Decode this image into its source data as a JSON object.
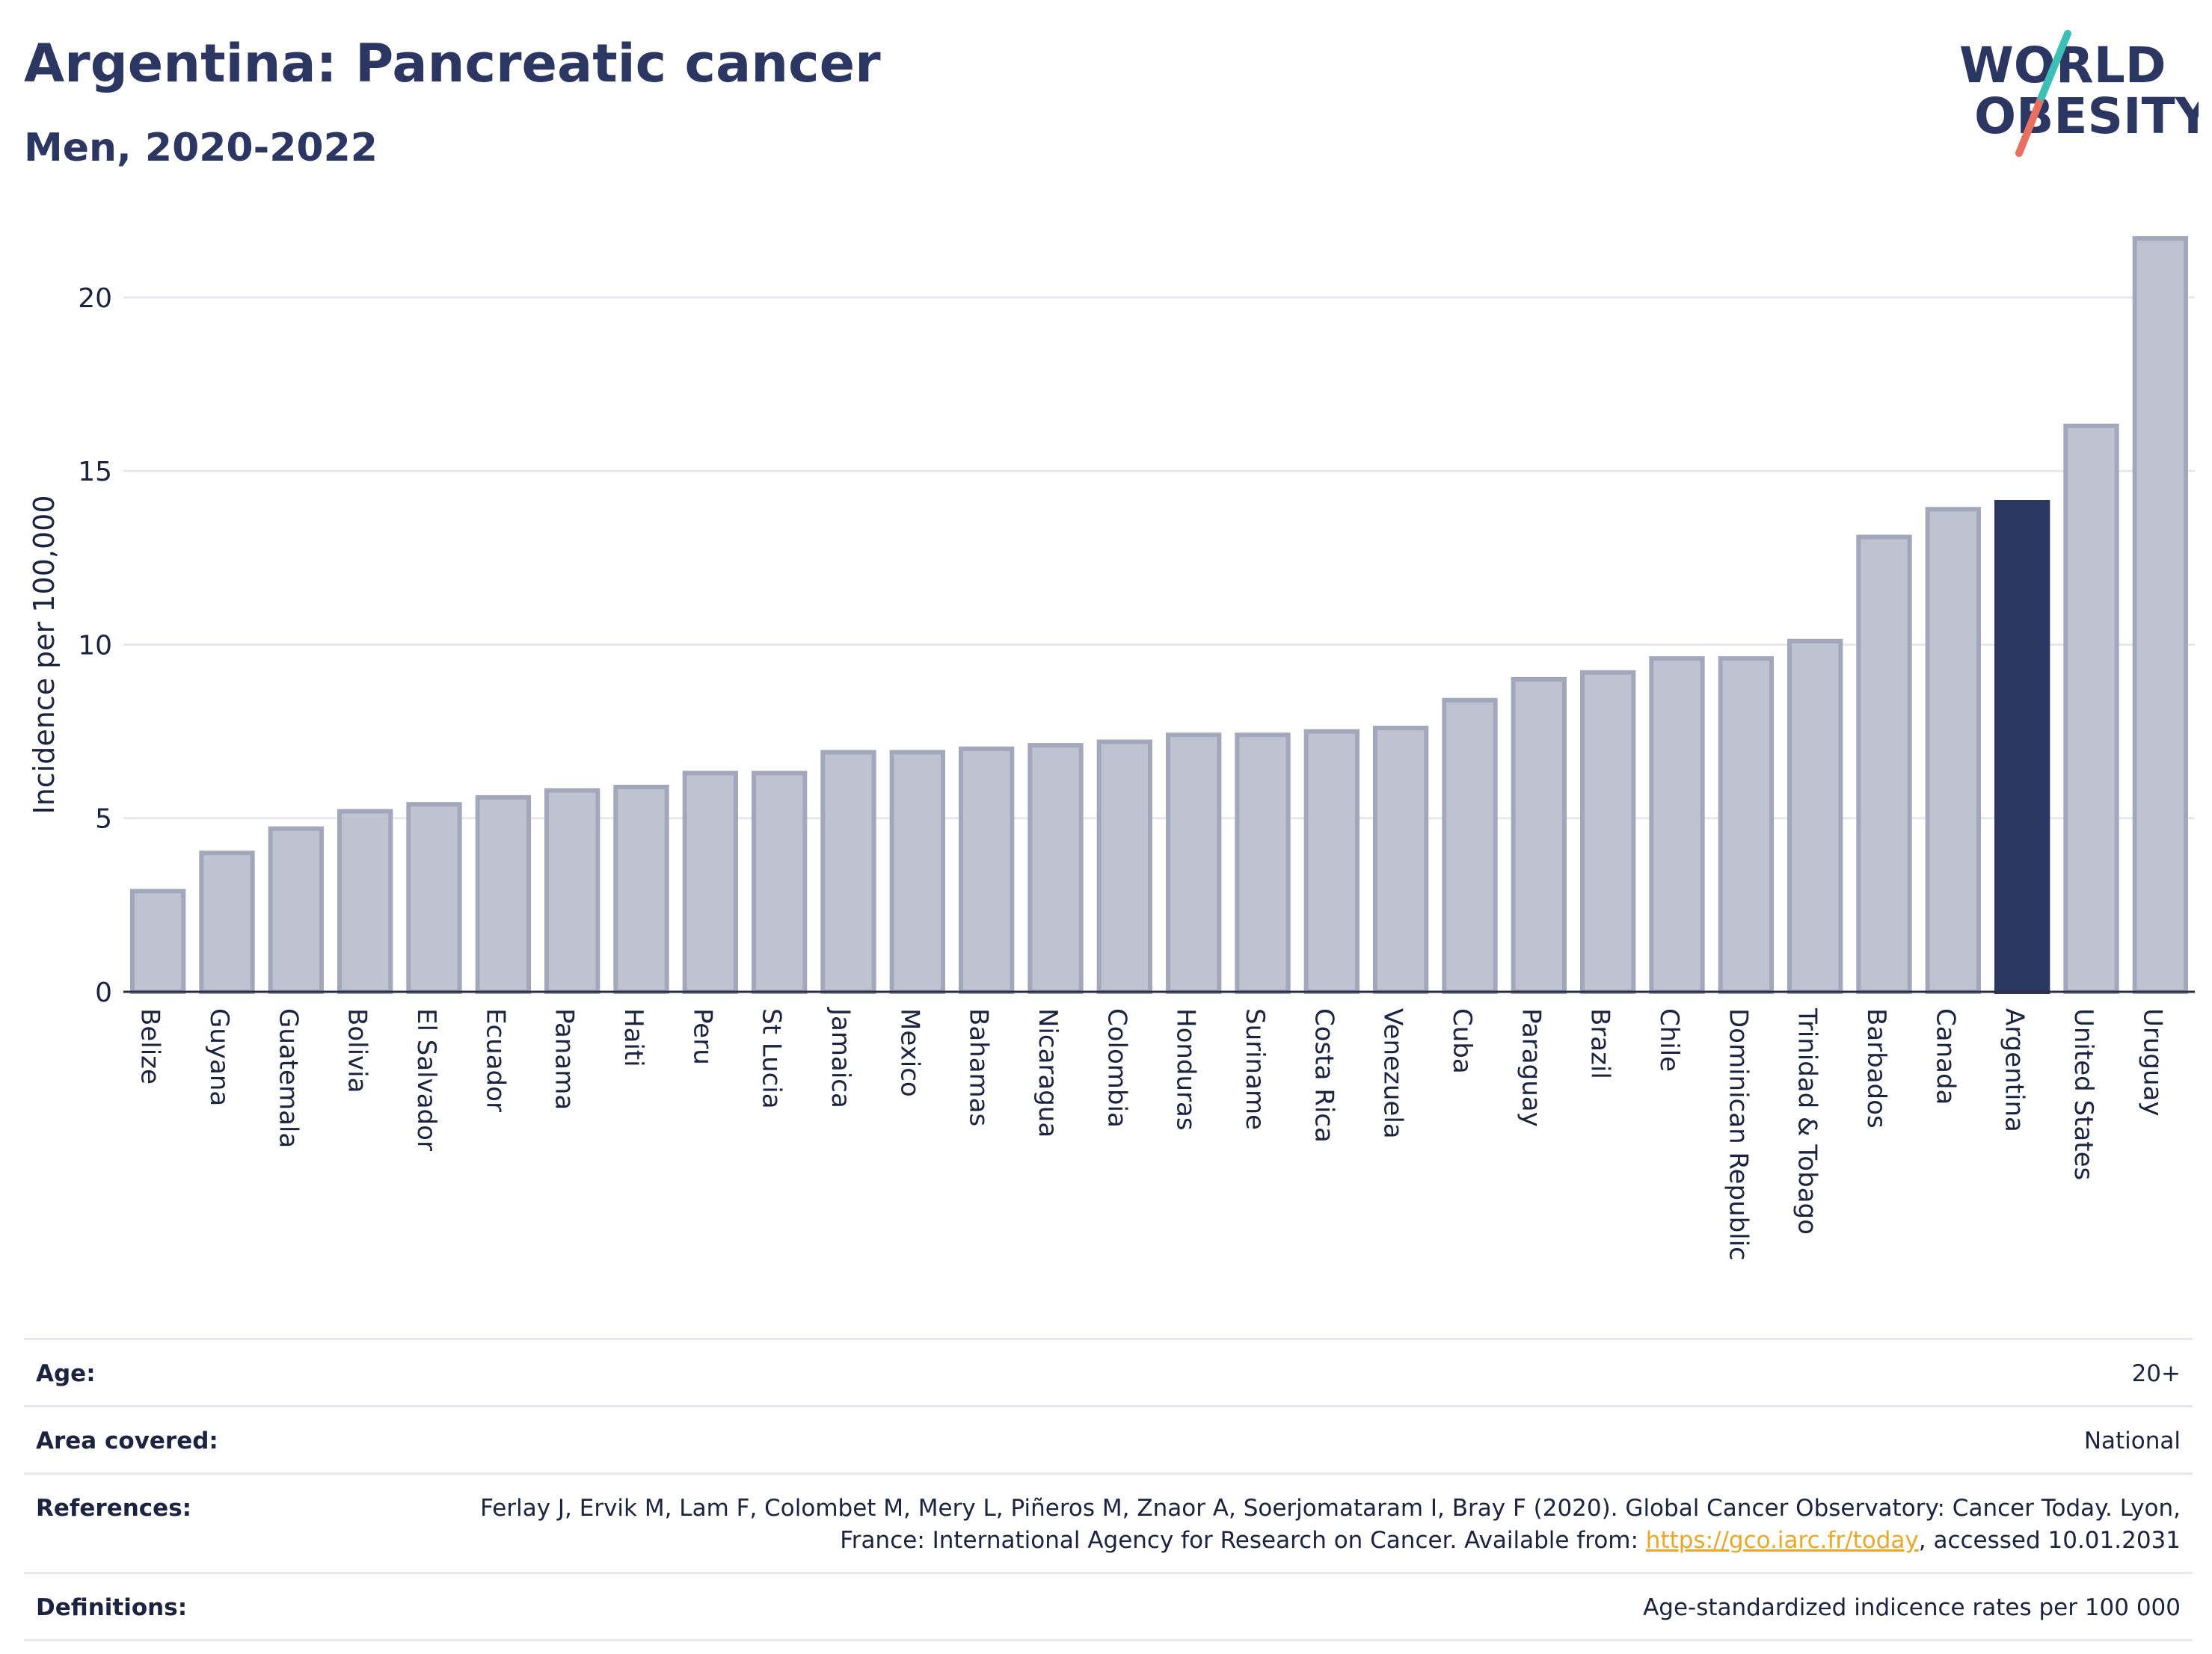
{
  "header": {
    "title": "Argentina: Pancreatic cancer",
    "subtitle": "Men, 2020-2022"
  },
  "logo": {
    "line1": "WORLD",
    "line2": "OBESITY"
  },
  "colors": {
    "bar": "#bfc3d1",
    "bar_border": "#a2a7bc",
    "highlight": "#2c3662",
    "grid": "#e6e8ee",
    "axis": "#2a2f45"
  },
  "chart_data": {
    "type": "bar",
    "ylabel": "Incidence per 100,000",
    "ylim": [
      0,
      22
    ],
    "yticks": [
      0,
      5,
      10,
      15,
      20
    ],
    "grid": true,
    "highlight": "Argentina",
    "categories": [
      "Belize",
      "Guyana",
      "Guatemala",
      "Bolivia",
      "El Salvador",
      "Ecuador",
      "Panama",
      "Haiti",
      "Peru",
      "St Lucia",
      "Jamaica",
      "Mexico",
      "Bahamas",
      "Nicaragua",
      "Colombia",
      "Honduras",
      "Suriname",
      "Costa Rica",
      "Venezuela",
      "Cuba",
      "Paraguay",
      "Brazil",
      "Chile",
      "Dominican Republic",
      "Trinidad & Tobago",
      "Barbados",
      "Canada",
      "Argentina",
      "United States",
      "Uruguay"
    ],
    "values": [
      2.9,
      4.0,
      4.7,
      5.2,
      5.4,
      5.6,
      5.8,
      5.9,
      6.3,
      6.3,
      6.9,
      6.9,
      7.0,
      7.1,
      7.2,
      7.4,
      7.4,
      7.5,
      7.6,
      8.4,
      9.0,
      9.2,
      9.6,
      9.6,
      10.1,
      13.1,
      13.9,
      14.1,
      16.3,
      21.7
    ]
  },
  "meta": {
    "age_label": "Age:",
    "age_value": "20+",
    "area_label": "Area covered:",
    "area_value": "National",
    "references_label": "References:",
    "references_text": "Ferlay J, Ervik M, Lam F, Colombet M, Mery L, Piñeros M, Znaor A, Soerjomataram I, Bray F (2020). Global Cancer Observatory: Cancer Today. Lyon, France: International Agency for Research on Cancer. Available from: ",
    "references_link": "https://gco.iarc.fr/today",
    "references_tail": ", accessed 10.01.2031",
    "definitions_label": "Definitions:",
    "definitions_value": "Age-standardized indicence rates per 100 000"
  }
}
